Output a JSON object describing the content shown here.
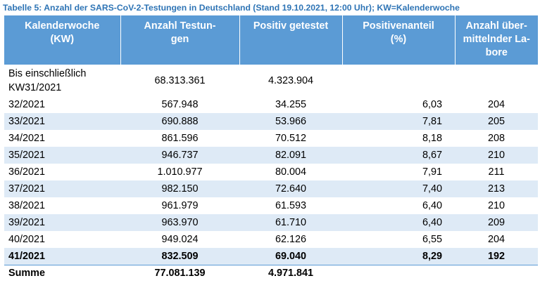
{
  "caption": "Tabelle 5: Anzahl der SARS-CoV-2-Testungen in Deutschland (Stand 19.10.2021, 12:00 Uhr); KW=Kalenderwoche",
  "headers": {
    "kw": [
      "Kalenderwoche",
      "(KW)"
    ],
    "tests": [
      "Anzahl Testun-",
      "gen"
    ],
    "positive": [
      "Positiv getestet"
    ],
    "share": [
      "Positivenanteil",
      "(%)"
    ],
    "labs": [
      "Anzahl über-",
      "mittelnder La-",
      "bore"
    ]
  },
  "first_row": {
    "kw": "Bis einschließlich KW31/2021",
    "tests": "68.313.361",
    "positive": "4.323.904",
    "share": "",
    "labs": ""
  },
  "rows": [
    {
      "kw": "32/2021",
      "tests": "567.948",
      "positive": "34.255",
      "share": "6,03",
      "labs": "204"
    },
    {
      "kw": "33/2021",
      "tests": "690.888",
      "positive": "53.966",
      "share": "7,81",
      "labs": "205"
    },
    {
      "kw": "34/2021",
      "tests": "861.596",
      "positive": "70.512",
      "share": "8,18",
      "labs": "208"
    },
    {
      "kw": "35/2021",
      "tests": "946.737",
      "positive": "82.091",
      "share": "8,67",
      "labs": "210"
    },
    {
      "kw": "36/2021",
      "tests": "1.010.977",
      "positive": "80.004",
      "share": "7,91",
      "labs": "211"
    },
    {
      "kw": "37/2021",
      "tests": "982.150",
      "positive": "72.640",
      "share": "7,40",
      "labs": "213"
    },
    {
      "kw": "38/2021",
      "tests": "961.979",
      "positive": "61.593",
      "share": "6,40",
      "labs": "210"
    },
    {
      "kw": "39/2021",
      "tests": "963.970",
      "positive": "61.710",
      "share": "6,40",
      "labs": "209"
    },
    {
      "kw": "40/2021",
      "tests": "949.024",
      "positive": "62.126",
      "share": "6,55",
      "labs": "204"
    },
    {
      "kw": "41/2021",
      "tests": "832.509",
      "positive": "69.040",
      "share": "8,29",
      "labs": "192"
    }
  ],
  "sum_row": {
    "kw": "Summe",
    "tests": "77.081.139",
    "positive": "4.971.841",
    "share": "",
    "labs": ""
  },
  "colors": {
    "header_bg": "#5b9bd5",
    "stripe_bg": "#deeaf6",
    "caption": "#2e74b5"
  }
}
